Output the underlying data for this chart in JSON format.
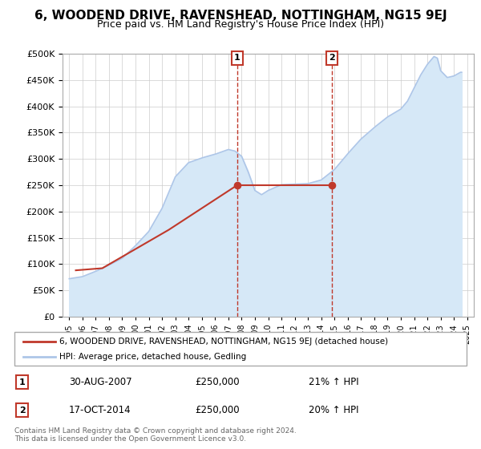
{
  "title": "6, WOODEND DRIVE, RAVENSHEAD, NOTTINGHAM, NG15 9EJ",
  "subtitle": "Price paid vs. HM Land Registry's House Price Index (HPI)",
  "legend_line1": "6, WOODEND DRIVE, RAVENSHEAD, NOTTINGHAM, NG15 9EJ (detached house)",
  "legend_line2": "HPI: Average price, detached house, Gedling",
  "annotation1_label": "1",
  "annotation1_date": "30-AUG-2007",
  "annotation1_price": "£250,000",
  "annotation1_hpi": "21% ↑ HPI",
  "annotation2_label": "2",
  "annotation2_date": "17-OCT-2014",
  "annotation2_price": "£250,000",
  "annotation2_hpi": "20% ↑ HPI",
  "footnote1": "Contains HM Land Registry data © Crown copyright and database right 2024.",
  "footnote2": "This data is licensed under the Open Government Licence v3.0.",
  "sale1_year": 2007.66,
  "sale1_price": 250000,
  "sale2_year": 2014.79,
  "sale2_price": 250000,
  "ylim": [
    0,
    500000
  ],
  "xlim_start": 1994.5,
  "xlim_end": 2025.5,
  "yticks": [
    0,
    50000,
    100000,
    150000,
    200000,
    250000,
    300000,
    350000,
    400000,
    450000,
    500000
  ],
  "xticks": [
    1995,
    1996,
    1997,
    1998,
    1999,
    2000,
    2001,
    2002,
    2003,
    2004,
    2005,
    2006,
    2007,
    2008,
    2009,
    2010,
    2011,
    2012,
    2013,
    2014,
    2015,
    2016,
    2017,
    2018,
    2019,
    2020,
    2021,
    2022,
    2023,
    2024,
    2025
  ],
  "hpi_color": "#aec6e8",
  "price_color": "#c0392b",
  "sale_dot_color": "#c0392b",
  "annotation_box_color": "#c0392b",
  "vline_color": "#c0392b",
  "shaded_color": "#d6e8f7",
  "background_color": "#ffffff",
  "grid_color": "#cccccc",
  "title_fontsize": 11,
  "subtitle_fontsize": 9,
  "price_years": [
    1995.5,
    1997.5,
    2002.5,
    2007.66,
    2014.79
  ],
  "price_values": [
    88000,
    92000,
    165000,
    250000,
    250000
  ]
}
